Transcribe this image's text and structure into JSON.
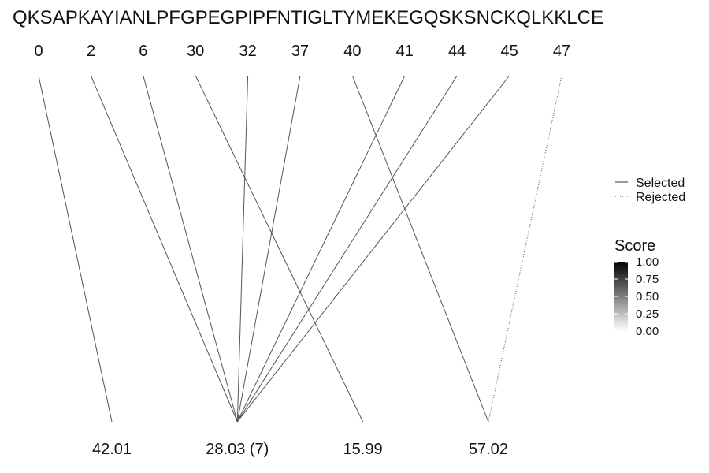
{
  "chart_data": {
    "type": "line",
    "sequence": "QKSAPKAYIANLPFGPEGPIPFNTIGLTYMEKEGQSKSNCKQLKKLCE",
    "positions": [
      "0",
      "2",
      "6",
      "30",
      "32",
      "37",
      "40",
      "41",
      "44",
      "45",
      "47"
    ],
    "masses": [
      "42.01",
      "28.03 (7)",
      "15.99",
      "57.02"
    ],
    "links": [
      {
        "from": "0",
        "to": "42.01",
        "status": "Selected",
        "score": 0.5
      },
      {
        "from": "2",
        "to": "28.03 (7)",
        "status": "Selected",
        "score": 0.5
      },
      {
        "from": "6",
        "to": "28.03 (7)",
        "status": "Selected",
        "score": 0.5
      },
      {
        "from": "30",
        "to": "15.99",
        "status": "Selected",
        "score": 0.5
      },
      {
        "from": "32",
        "to": "28.03 (7)",
        "status": "Selected",
        "score": 0.5
      },
      {
        "from": "37",
        "to": "28.03 (7)",
        "status": "Selected",
        "score": 0.5
      },
      {
        "from": "40",
        "to": "57.02",
        "status": "Selected",
        "score": 0.5
      },
      {
        "from": "41",
        "to": "28.03 (7)",
        "status": "Selected",
        "score": 0.5
      },
      {
        "from": "44",
        "to": "28.03 (7)",
        "status": "Selected",
        "score": 0.5
      },
      {
        "from": "45",
        "to": "28.03 (7)",
        "status": "Selected",
        "score": 0.5
      },
      {
        "from": "47",
        "to": "57.02",
        "status": "Rejected",
        "score": 0.5
      }
    ],
    "legend": {
      "line_types": [
        "Selected",
        "Rejected"
      ],
      "score_title": "Score",
      "score_ticks": [
        "1.00",
        "0.75",
        "0.50",
        "0.25",
        "0.00"
      ],
      "score_range": [
        0,
        1
      ],
      "placement": "right"
    },
    "colors": {
      "line": "#555555",
      "scale_high": "#000000",
      "scale_low": "#ffffff"
    }
  }
}
